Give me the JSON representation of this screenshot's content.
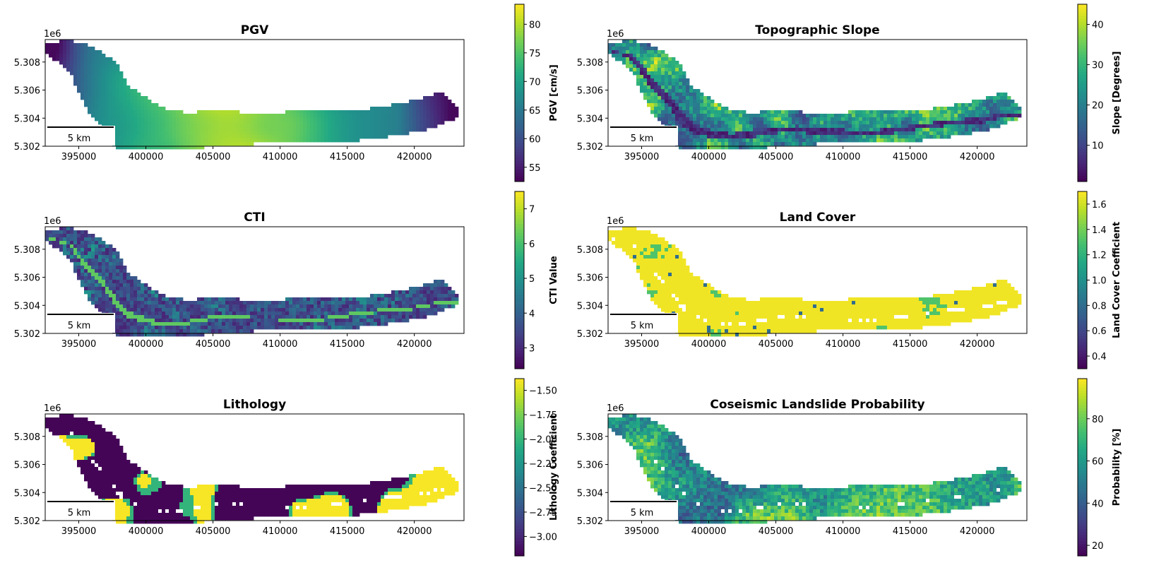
{
  "chart_data": [
    {
      "type": "heatmap",
      "title": "PGV",
      "offset_label": "1e6",
      "xticks": [
        395000,
        400000,
        405000,
        410000,
        415000,
        420000
      ],
      "xtick_labels": [
        "395000",
        "400000",
        "405000",
        "410000",
        "415000",
        "420000"
      ],
      "yticks": [
        5.308,
        5.306,
        5.304,
        5.302
      ],
      "ytick_labels": [
        "5.308",
        "5.306",
        "5.304",
        "5.302"
      ],
      "xlim": [
        392500,
        423700
      ],
      "ylim": [
        5.302,
        5.3096
      ],
      "scalebar_label": "5 km",
      "colorbar": {
        "label": "PGV [cm/s]",
        "ticks": [
          80,
          75,
          70,
          65,
          60,
          55
        ],
        "tick_labels": [
          "80",
          "75",
          "70",
          "65",
          "60",
          "55"
        ],
        "range": [
          52.5,
          83.5
        ],
        "colormap": "viridis"
      },
      "field": "pgv"
    },
    {
      "type": "heatmap",
      "title": "Topographic Slope",
      "offset_label": "1e6",
      "xticks": [
        395000,
        400000,
        405000,
        410000,
        415000,
        420000
      ],
      "xtick_labels": [
        "395000",
        "400000",
        "405000",
        "410000",
        "415000",
        "420000"
      ],
      "yticks": [
        5.308,
        5.306,
        5.304,
        5.302
      ],
      "ytick_labels": [
        "5.308",
        "5.306",
        "5.304",
        "5.302"
      ],
      "xlim": [
        392500,
        423700
      ],
      "ylim": [
        5.302,
        5.3096
      ],
      "scalebar_label": "5 km",
      "colorbar": {
        "label": "Slope [Degrees]",
        "ticks": [
          40,
          30,
          20,
          10
        ],
        "tick_labels": [
          "40",
          "30",
          "20",
          "10"
        ],
        "range": [
          1,
          45
        ],
        "colormap": "viridis"
      },
      "field": "slope"
    },
    {
      "type": "heatmap",
      "title": "CTI",
      "offset_label": "1e6",
      "xticks": [
        395000,
        400000,
        405000,
        410000,
        415000,
        420000
      ],
      "xtick_labels": [
        "395000",
        "400000",
        "405000",
        "410000",
        "415000",
        "420000"
      ],
      "yticks": [
        5.308,
        5.306,
        5.304,
        5.302
      ],
      "ytick_labels": [
        "5.308",
        "5.306",
        "5.304",
        "5.302"
      ],
      "xlim": [
        392500,
        423700
      ],
      "ylim": [
        5.302,
        5.3096
      ],
      "scalebar_label": "5 km",
      "colorbar": {
        "label": "CTI Value",
        "ticks": [
          7,
          6,
          5,
          4,
          3
        ],
        "tick_labels": [
          "7",
          "6",
          "5",
          "4",
          "3"
        ],
        "range": [
          2.4,
          7.5
        ],
        "colormap": "viridis"
      },
      "field": "cti"
    },
    {
      "type": "heatmap",
      "title": "Land Cover",
      "offset_label": "1e6",
      "xticks": [
        395000,
        400000,
        405000,
        410000,
        415000,
        420000
      ],
      "xtick_labels": [
        "395000",
        "400000",
        "405000",
        "410000",
        "415000",
        "420000"
      ],
      "yticks": [
        5.308,
        5.306,
        5.304,
        5.302
      ],
      "ytick_labels": [
        "5.308",
        "5.306",
        "5.304",
        "5.302"
      ],
      "xlim": [
        392500,
        423700
      ],
      "ylim": [
        5.302,
        5.3096
      ],
      "scalebar_label": "5 km",
      "colorbar": {
        "label": "Land Cover Coefficient",
        "ticks": [
          1.6,
          1.4,
          1.2,
          1.0,
          0.8,
          0.6,
          0.4
        ],
        "tick_labels": [
          "1.6",
          "1.4",
          "1.2",
          "1.0",
          "0.8",
          "0.6",
          "0.4"
        ],
        "range": [
          0.3,
          1.7
        ],
        "colormap": "viridis"
      },
      "field": "landcover"
    },
    {
      "type": "heatmap",
      "title": "Lithology",
      "offset_label": "1e6",
      "xticks": [
        395000,
        400000,
        405000,
        410000,
        415000,
        420000
      ],
      "xtick_labels": [
        "395000",
        "400000",
        "405000",
        "410000",
        "415000",
        "420000"
      ],
      "yticks": [
        5.308,
        5.306,
        5.304,
        5.302
      ],
      "ytick_labels": [
        "5.308",
        "5.306",
        "5.304",
        "5.302"
      ],
      "xlim": [
        392500,
        423700
      ],
      "ylim": [
        5.302,
        5.3096
      ],
      "scalebar_label": "5 km",
      "colorbar": {
        "label": "Lithology Coefficient",
        "ticks": [
          -1.5,
          -1.75,
          -2.0,
          -2.25,
          -2.5,
          -2.75,
          -3.0
        ],
        "tick_labels": [
          "−1.50",
          "−1.75",
          "−2.00",
          "−2.25",
          "−2.50",
          "−2.75",
          "−3.00"
        ],
        "range": [
          -3.2,
          -1.38
        ],
        "colormap": "viridis"
      },
      "field": "lithology"
    },
    {
      "type": "heatmap",
      "title": "Coseismic Landslide Probability",
      "offset_label": "1e6",
      "xticks": [
        395000,
        400000,
        405000,
        410000,
        415000,
        420000
      ],
      "xtick_labels": [
        "395000",
        "400000",
        "405000",
        "410000",
        "415000",
        "420000"
      ],
      "yticks": [
        5.308,
        5.306,
        5.304,
        5.302
      ],
      "ytick_labels": [
        "5.308",
        "5.306",
        "5.304",
        "5.302"
      ],
      "xlim": [
        392500,
        423700
      ],
      "ylim": [
        5.302,
        5.3096
      ],
      "scalebar_label": "5 km",
      "colorbar": {
        "label": "Probability [%]",
        "ticks": [
          80,
          60,
          40,
          20
        ],
        "tick_labels": [
          "80",
          "60",
          "40",
          "20"
        ],
        "range": [
          15,
          99
        ],
        "colormap": "viridis"
      },
      "field": "probability"
    }
  ]
}
